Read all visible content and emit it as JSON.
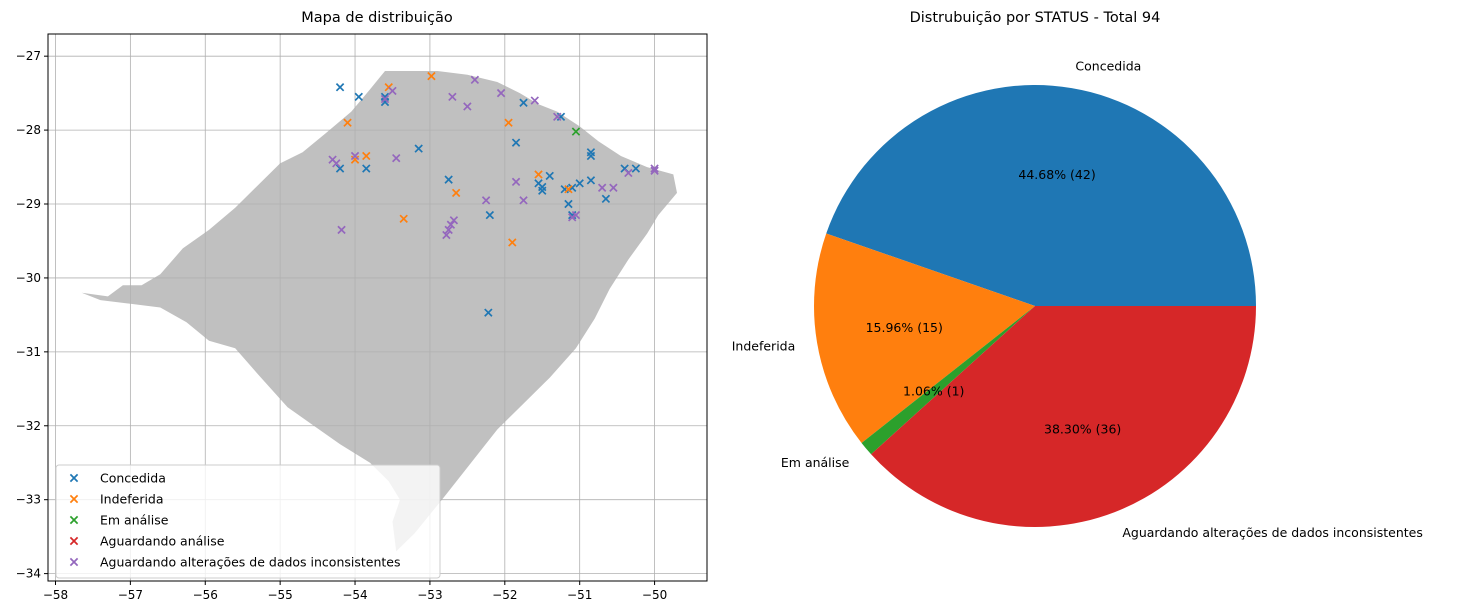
{
  "chart_data": [
    {
      "type": "scatter",
      "title": "Mapa de distribuição",
      "xlabel": "",
      "ylabel": "",
      "xlim": [
        -58.1,
        -49.3
      ],
      "ylim": [
        -34.1,
        -26.7
      ],
      "xticks": [
        -58,
        -57,
        -56,
        -55,
        -54,
        -53,
        -52,
        -51,
        -50
      ],
      "yticks": [
        -27,
        -28,
        -29,
        -30,
        -31,
        -32,
        -33,
        -34
      ],
      "xtick_labels": [
        "−58",
        "−57",
        "−56",
        "−55",
        "−54",
        "−53",
        "−52",
        "−51",
        "−50"
      ],
      "ytick_labels": [
        "−27",
        "−28",
        "−29",
        "−30",
        "−31",
        "−32",
        "−33",
        "−34"
      ],
      "grid": true,
      "legend_position": "lower-left",
      "marker": "x",
      "background_shape_color": "#c0c0c0",
      "series": [
        {
          "name": "Concedida",
          "color": "#1f77b4",
          "points": [
            [
              -54.2,
              -27.42
            ],
            [
              -53.95,
              -27.55
            ],
            [
              -53.6,
              -27.55
            ],
            [
              -53.6,
              -27.62
            ],
            [
              -51.75,
              -27.63
            ],
            [
              -51.25,
              -27.82
            ],
            [
              -51.85,
              -28.17
            ],
            [
              -50.85,
              -28.3
            ],
            [
              -50.85,
              -28.35
            ],
            [
              -50.4,
              -28.52
            ],
            [
              -50.25,
              -28.52
            ],
            [
              -53.15,
              -28.25
            ],
            [
              -54.2,
              -28.52
            ],
            [
              -53.85,
              -28.52
            ],
            [
              -52.75,
              -28.67
            ],
            [
              -51.55,
              -28.72
            ],
            [
              -51.5,
              -28.77
            ],
            [
              -51.5,
              -28.82
            ],
            [
              -51.4,
              -28.62
            ],
            [
              -51.2,
              -28.8
            ],
            [
              -51.1,
              -28.78
            ],
            [
              -51.15,
              -29.0
            ],
            [
              -51.0,
              -28.72
            ],
            [
              -50.85,
              -28.68
            ],
            [
              -50.65,
              -28.93
            ],
            [
              -52.2,
              -29.15
            ],
            [
              -51.1,
              -29.15
            ],
            [
              -52.22,
              -30.47
            ]
          ]
        },
        {
          "name": "Indeferida",
          "color": "#ff7f0e",
          "points": [
            [
              -52.98,
              -27.27
            ],
            [
              -53.55,
              -27.42
            ],
            [
              -54.1,
              -27.9
            ],
            [
              -51.95,
              -27.9
            ],
            [
              -53.85,
              -28.35
            ],
            [
              -54.0,
              -28.4
            ],
            [
              -51.55,
              -28.6
            ],
            [
              -51.15,
              -28.8
            ],
            [
              -52.65,
              -28.85
            ],
            [
              -53.35,
              -29.2
            ],
            [
              -51.9,
              -29.52
            ]
          ]
        },
        {
          "name": "Em análise",
          "color": "#2ca02c",
          "points": [
            [
              -51.05,
              -28.02
            ]
          ]
        },
        {
          "name": "Aguardando análise",
          "color": "#d62728",
          "points": []
        },
        {
          "name": "Aguardando alterações de dados inconsistentes",
          "color": "#9467bd",
          "points": [
            [
              -52.4,
              -27.32
            ],
            [
              -53.5,
              -27.47
            ],
            [
              -53.6,
              -27.58
            ],
            [
              -52.7,
              -27.55
            ],
            [
              -52.5,
              -27.68
            ],
            [
              -52.05,
              -27.5
            ],
            [
              -51.6,
              -27.6
            ],
            [
              -51.3,
              -27.82
            ],
            [
              -54.0,
              -28.35
            ],
            [
              -53.45,
              -28.38
            ],
            [
              -54.3,
              -28.4
            ],
            [
              -54.25,
              -28.45
            ],
            [
              -51.85,
              -28.7
            ],
            [
              -51.75,
              -28.95
            ],
            [
              -52.25,
              -28.95
            ],
            [
              -50.7,
              -28.78
            ],
            [
              -50.55,
              -28.78
            ],
            [
              -50.35,
              -28.58
            ],
            [
              -50.0,
              -28.52
            ],
            [
              -50.0,
              -28.55
            ],
            [
              -51.05,
              -29.15
            ],
            [
              -51.1,
              -29.18
            ],
            [
              -52.68,
              -29.22
            ],
            [
              -52.72,
              -29.28
            ],
            [
              -52.75,
              -29.35
            ],
            [
              -52.78,
              -29.42
            ],
            [
              -54.18,
              -29.35
            ]
          ]
        }
      ]
    },
    {
      "type": "pie",
      "title": "Distrubuição por STATUS - Total 94",
      "legend_position": "none",
      "slices": [
        {
          "label": "Concedida",
          "value": 42,
          "pct_label": "44.68%  (42)",
          "color": "#1f77b4"
        },
        {
          "label": "Indeferida",
          "value": 15,
          "pct_label": "15.96%  (15)",
          "color": "#ff7f0e"
        },
        {
          "label": "Em análise",
          "value": 1,
          "pct_label": "1.06%  (1)",
          "color": "#2ca02c"
        },
        {
          "label": "Aguardando alterações de dados inconsistentes",
          "value": 36,
          "pct_label": "38.30%  (36)",
          "color": "#d62728"
        }
      ]
    }
  ]
}
